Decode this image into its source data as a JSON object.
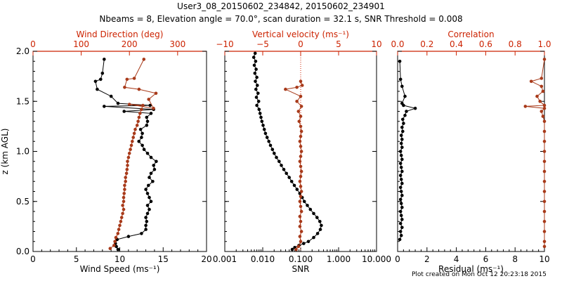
{
  "figure": {
    "title_line1": "User3_08_20150602_234842, 20150602_234901",
    "title_line2": "Nbeams = 8, Elevation angle = 70.0°, scan duration = 32.1 s, SNR Threshold = 0.008",
    "credit": "Plot created on Mon Oct 12 20:23:18 2015",
    "colors": {
      "black": "#000000",
      "red": "#cc2200",
      "series_red": "#a83a1a"
    }
  },
  "chart_data": [
    {
      "type": "line",
      "panel": "left",
      "ylabel": "z (km AGL)",
      "ylim": [
        0,
        2.0
      ],
      "yticks": [
        "0.0",
        "0.5",
        "1.0",
        "1.5",
        "2.0"
      ],
      "xlabel_bottom": "Wind Speed (ms⁻¹)",
      "xlim_bottom": [
        0,
        20
      ],
      "xticks_bottom": [
        "0",
        "5",
        "10",
        "15",
        "20"
      ],
      "xlabel_top": "Wind Direction (deg)",
      "xlim_top": [
        0,
        360
      ],
      "xticks_top": [
        "0",
        "100",
        "200",
        "300"
      ],
      "series": [
        {
          "axis": "bottom",
          "color": "black",
          "points": [
            [
              9.8,
              0.02
            ],
            [
              9.6,
              0.05
            ],
            [
              9.5,
              0.08
            ],
            [
              9.7,
              0.12
            ],
            [
              11.0,
              0.15
            ],
            [
              12.5,
              0.18
            ],
            [
              13.0,
              0.22
            ],
            [
              13.0,
              0.26
            ],
            [
              13.1,
              0.3
            ],
            [
              13.0,
              0.34
            ],
            [
              13.2,
              0.38
            ],
            [
              13.4,
              0.42
            ],
            [
              13.2,
              0.46
            ],
            [
              13.6,
              0.5
            ],
            [
              13.4,
              0.54
            ],
            [
              13.2,
              0.58
            ],
            [
              13.0,
              0.62
            ],
            [
              13.3,
              0.66
            ],
            [
              13.8,
              0.7
            ],
            [
              13.4,
              0.74
            ],
            [
              13.6,
              0.78
            ],
            [
              14.0,
              0.82
            ],
            [
              13.9,
              0.86
            ],
            [
              14.2,
              0.9
            ],
            [
              13.6,
              0.94
            ],
            [
              13.2,
              0.98
            ],
            [
              12.8,
              1.02
            ],
            [
              12.6,
              1.06
            ],
            [
              12.2,
              1.1
            ],
            [
              12.5,
              1.14
            ],
            [
              12.6,
              1.18
            ],
            [
              12.4,
              1.22
            ],
            [
              13.1,
              1.26
            ],
            [
              13.2,
              1.3
            ],
            [
              13.1,
              1.34
            ],
            [
              13.6,
              1.38
            ],
            [
              10.5,
              1.4
            ],
            [
              13.9,
              1.42
            ],
            [
              8.2,
              1.45
            ],
            [
              13.5,
              1.46
            ],
            [
              9.8,
              1.48
            ],
            [
              9.0,
              1.55
            ],
            [
              7.4,
              1.62
            ],
            [
              7.2,
              1.7
            ],
            [
              7.8,
              1.72
            ],
            [
              8.0,
              1.78
            ],
            [
              8.2,
              1.92
            ]
          ]
        },
        {
          "axis": "top",
          "color": "series_red",
          "points": [
            [
              160,
              0.03
            ],
            [
              168,
              0.06
            ],
            [
              170,
              0.1
            ],
            [
              172,
              0.14
            ],
            [
              176,
              0.18
            ],
            [
              178,
              0.22
            ],
            [
              180,
              0.26
            ],
            [
              182,
              0.3
            ],
            [
              184,
              0.34
            ],
            [
              186,
              0.38
            ],
            [
              188,
              0.42
            ],
            [
              186,
              0.46
            ],
            [
              188,
              0.5
            ],
            [
              188,
              0.54
            ],
            [
              189,
              0.58
            ],
            [
              190,
              0.62
            ],
            [
              190,
              0.66
            ],
            [
              192,
              0.7
            ],
            [
              192,
              0.74
            ],
            [
              194,
              0.78
            ],
            [
              195,
              0.82
            ],
            [
              196,
              0.86
            ],
            [
              196,
              0.9
            ],
            [
              198,
              0.94
            ],
            [
              200,
              0.98
            ],
            [
              202,
              1.02
            ],
            [
              204,
              1.06
            ],
            [
              206,
              1.1
            ],
            [
              208,
              1.14
            ],
            [
              210,
              1.18
            ],
            [
              212,
              1.22
            ],
            [
              216,
              1.26
            ],
            [
              218,
              1.3
            ],
            [
              220,
              1.34
            ],
            [
              222,
              1.38
            ],
            [
              225,
              1.42
            ],
            [
              228,
              1.46
            ],
            [
              200,
              1.47
            ],
            [
              250,
              1.43
            ],
            [
              240,
              1.52
            ],
            [
              255,
              1.58
            ],
            [
              220,
              1.62
            ],
            [
              190,
              1.64
            ],
            [
              195,
              1.72
            ],
            [
              210,
              1.73
            ],
            [
              230,
              1.92
            ]
          ]
        }
      ]
    },
    {
      "type": "line",
      "panel": "middle",
      "xlabel_bottom": "SNR",
      "xscale_bottom": "log",
      "xlim_bottom": [
        0.001,
        10
      ],
      "xticks_bottom": [
        "0.001",
        "0.010",
        "0.100",
        "1.000",
        "10.000"
      ],
      "xlabel_top": "Vertical velocity (ms⁻¹)",
      "xlim_top": [
        -10,
        10
      ],
      "xticks_top": [
        "−10",
        "−5",
        "0",
        "5",
        "10"
      ],
      "zero_line": 0,
      "series": [
        {
          "axis": "bottom",
          "color": "black",
          "points": [
            [
              0.06,
              0.02
            ],
            [
              0.07,
              0.04
            ],
            [
              0.09,
              0.06
            ],
            [
              0.12,
              0.08
            ],
            [
              0.16,
              0.1
            ],
            [
              0.22,
              0.14
            ],
            [
              0.28,
              0.18
            ],
            [
              0.33,
              0.22
            ],
            [
              0.35,
              0.26
            ],
            [
              0.32,
              0.3
            ],
            [
              0.27,
              0.34
            ],
            [
              0.22,
              0.38
            ],
            [
              0.18,
              0.42
            ],
            [
              0.15,
              0.46
            ],
            [
              0.125,
              0.5
            ],
            [
              0.11,
              0.54
            ],
            [
              0.095,
              0.58
            ],
            [
              0.08,
              0.62
            ],
            [
              0.068,
              0.66
            ],
            [
              0.058,
              0.7
            ],
            [
              0.05,
              0.74
            ],
            [
              0.042,
              0.78
            ],
            [
              0.036,
              0.82
            ],
            [
              0.031,
              0.86
            ],
            [
              0.027,
              0.9
            ],
            [
              0.023,
              0.94
            ],
            [
              0.02,
              0.98
            ],
            [
              0.018,
              1.02
            ],
            [
              0.016,
              1.06
            ],
            [
              0.0145,
              1.1
            ],
            [
              0.013,
              1.14
            ],
            [
              0.0118,
              1.18
            ],
            [
              0.011,
              1.22
            ],
            [
              0.0102,
              1.26
            ],
            [
              0.0095,
              1.3
            ],
            [
              0.009,
              1.34
            ],
            [
              0.0085,
              1.38
            ],
            [
              0.008,
              1.42
            ],
            [
              0.007,
              1.46
            ],
            [
              0.0078,
              1.5
            ],
            [
              0.0068,
              1.54
            ],
            [
              0.0075,
              1.58
            ],
            [
              0.0066,
              1.62
            ],
            [
              0.0072,
              1.66
            ],
            [
              0.0064,
              1.7
            ],
            [
              0.007,
              1.74
            ],
            [
              0.0062,
              1.78
            ],
            [
              0.0067,
              1.82
            ],
            [
              0.006,
              1.86
            ],
            [
              0.0065,
              1.9
            ],
            [
              0.0058,
              1.94
            ],
            [
              0.0063,
              1.98
            ]
          ]
        },
        {
          "axis": "top",
          "color": "series_red",
          "points": [
            [
              -0.6,
              0.02
            ],
            [
              -0.3,
              0.05
            ],
            [
              0.0,
              0.1
            ],
            [
              -0.1,
              0.15
            ],
            [
              0.1,
              0.2
            ],
            [
              -0.1,
              0.25
            ],
            [
              0.0,
              0.3
            ],
            [
              -0.1,
              0.35
            ],
            [
              0.1,
              0.4
            ],
            [
              0.0,
              0.45
            ],
            [
              -0.1,
              0.5
            ],
            [
              0.0,
              0.55
            ],
            [
              0.1,
              0.6
            ],
            [
              0.0,
              0.65
            ],
            [
              -0.1,
              0.7
            ],
            [
              0.0,
              0.75
            ],
            [
              0.1,
              0.8
            ],
            [
              0.0,
              0.85
            ],
            [
              -0.1,
              0.9
            ],
            [
              0.0,
              0.95
            ],
            [
              0.1,
              1.0
            ],
            [
              0.0,
              1.05
            ],
            [
              -0.1,
              1.1
            ],
            [
              0.0,
              1.15
            ],
            [
              0.1,
              1.2
            ],
            [
              0.0,
              1.25
            ],
            [
              -0.2,
              1.3
            ],
            [
              0.0,
              1.35
            ],
            [
              -0.3,
              1.4
            ],
            [
              0.1,
              1.45
            ],
            [
              -0.5,
              1.5
            ],
            [
              0.0,
              1.55
            ],
            [
              -2.0,
              1.62
            ],
            [
              -0.5,
              1.64
            ],
            [
              0.2,
              1.66
            ],
            [
              0.0,
              1.7
            ]
          ]
        }
      ]
    },
    {
      "type": "line",
      "panel": "right",
      "xlabel_bottom": "Residual (ms⁻¹)",
      "xlim_bottom": [
        0,
        10
      ],
      "xticks_bottom": [
        "0",
        "2",
        "4",
        "6",
        "8",
        "10"
      ],
      "xlabel_top": "Correlation",
      "xlim_top": [
        0,
        1.0
      ],
      "xticks_top": [
        "0.0",
        "0.2",
        "0.4",
        "0.6",
        "0.8",
        "1.0"
      ],
      "series": [
        {
          "axis": "bottom",
          "color": "black",
          "points": [
            [
              0.15,
              0.12
            ],
            [
              0.25,
              0.16
            ],
            [
              0.2,
              0.2
            ],
            [
              0.3,
              0.24
            ],
            [
              0.2,
              0.28
            ],
            [
              0.3,
              0.32
            ],
            [
              0.25,
              0.36
            ],
            [
              0.2,
              0.4
            ],
            [
              0.3,
              0.44
            ],
            [
              0.25,
              0.48
            ],
            [
              0.2,
              0.52
            ],
            [
              0.3,
              0.56
            ],
            [
              0.25,
              0.6
            ],
            [
              0.2,
              0.64
            ],
            [
              0.3,
              0.68
            ],
            [
              0.25,
              0.72
            ],
            [
              0.2,
              0.76
            ],
            [
              0.3,
              0.8
            ],
            [
              0.25,
              0.84
            ],
            [
              0.2,
              0.88
            ],
            [
              0.3,
              0.92
            ],
            [
              0.25,
              0.96
            ],
            [
              0.2,
              1.0
            ],
            [
              0.3,
              1.04
            ],
            [
              0.25,
              1.08
            ],
            [
              0.3,
              1.12
            ],
            [
              0.25,
              1.16
            ],
            [
              0.35,
              1.2
            ],
            [
              0.3,
              1.24
            ],
            [
              0.4,
              1.28
            ],
            [
              0.35,
              1.32
            ],
            [
              0.5,
              1.36
            ],
            [
              0.6,
              1.4
            ],
            [
              1.2,
              1.43
            ],
            [
              0.4,
              1.46
            ],
            [
              0.3,
              1.48
            ],
            [
              0.5,
              1.55
            ],
            [
              0.3,
              1.65
            ],
            [
              0.2,
              1.72
            ],
            [
              0.15,
              1.9
            ]
          ]
        },
        {
          "axis": "top",
          "color": "series_red",
          "points": [
            [
              1.0,
              0.05
            ],
            [
              1.0,
              0.1
            ],
            [
              1.0,
              0.2
            ],
            [
              1.0,
              0.3
            ],
            [
              1.0,
              0.4
            ],
            [
              1.0,
              0.5
            ],
            [
              1.0,
              0.6
            ],
            [
              1.0,
              0.7
            ],
            [
              1.0,
              0.8
            ],
            [
              1.0,
              0.9
            ],
            [
              1.0,
              1.0
            ],
            [
              1.0,
              1.1
            ],
            [
              1.0,
              1.2
            ],
            [
              1.0,
              1.3
            ],
            [
              0.99,
              1.35
            ],
            [
              0.98,
              1.4
            ],
            [
              1.0,
              1.43
            ],
            [
              0.87,
              1.45
            ],
            [
              1.0,
              1.46
            ],
            [
              0.97,
              1.5
            ],
            [
              0.95,
              1.55
            ],
            [
              0.99,
              1.6
            ],
            [
              0.98,
              1.65
            ],
            [
              0.91,
              1.7
            ],
            [
              0.98,
              1.73
            ],
            [
              1.0,
              1.92
            ]
          ]
        }
      ]
    }
  ]
}
